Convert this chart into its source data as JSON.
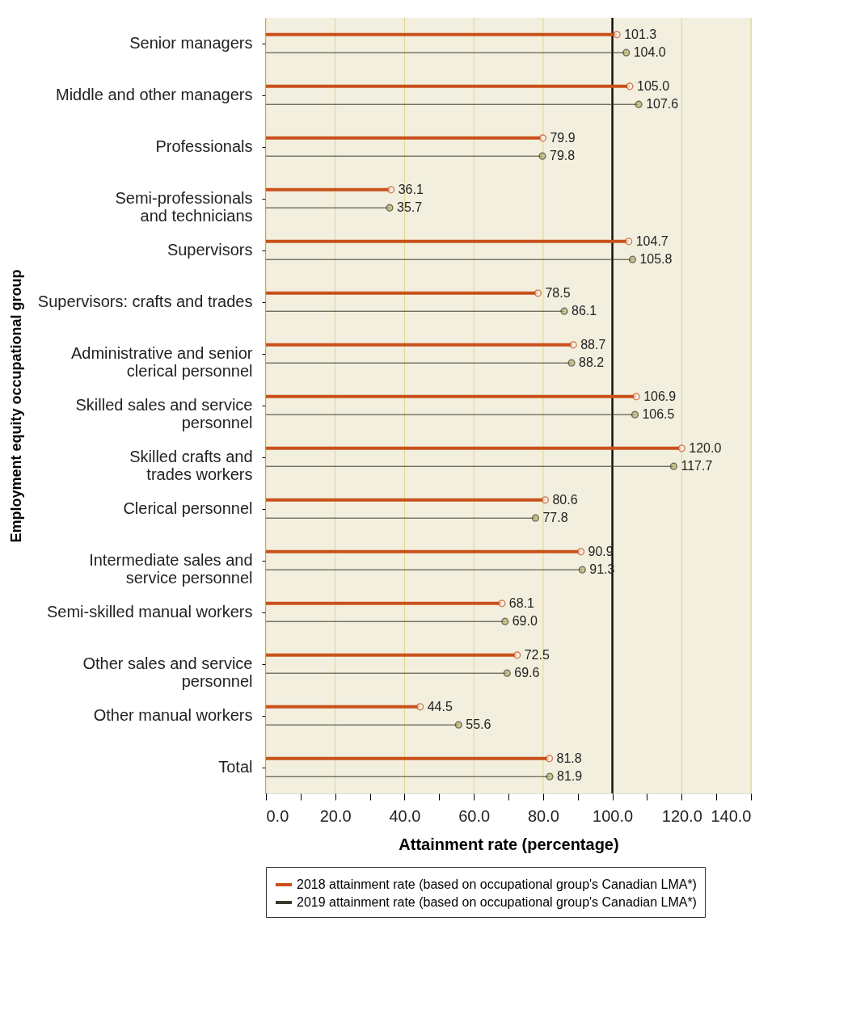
{
  "chart_data": {
    "type": "lollipop",
    "orientation": "horizontal",
    "xlabel": "Attainment rate (percentage)",
    "ylabel": "Employment equity occupational group",
    "categories": [
      "Senior managers",
      "Middle and other managers",
      "Professionals",
      "Semi-professionals\nand technicians",
      "Supervisors",
      "Supervisors: crafts and trades",
      "Administrative and senior\nclerical personnel",
      "Skilled sales and service\npersonnel",
      "Skilled crafts and\ntrades workers",
      "Clerical personnel",
      "Intermediate sales and\nservice personnel",
      "Semi-skilled manual workers",
      "Other sales and service\npersonnel",
      "Other manual workers",
      "Total"
    ],
    "series": [
      {
        "name": "2018 attainment rate (based on occupational group's Canadian LMA*)",
        "color": "#c9511a",
        "values": [
          101.3,
          105.0,
          79.9,
          36.1,
          104.7,
          78.5,
          88.7,
          106.9,
          120.0,
          80.6,
          90.9,
          68.1,
          72.5,
          44.5,
          81.8
        ],
        "value_labels": [
          "101.3",
          "105.0",
          "79.9",
          "36.1",
          "104.7",
          "78.5",
          "88.7",
          "106.9",
          "120.0",
          "80.6",
          "90.9",
          "68.1",
          "72.5",
          "44.5",
          "81.8"
        ]
      },
      {
        "name": "2019 attainment rate (based on occupational group's Canadian LMA*)",
        "color": "#3a3a2a",
        "values": [
          104.0,
          107.6,
          79.8,
          35.7,
          105.8,
          86.1,
          88.2,
          106.5,
          117.7,
          77.8,
          91.3,
          69.0,
          69.6,
          55.6,
          81.9
        ],
        "value_labels": [
          "104.0",
          "107.6",
          "79.8",
          "35.7",
          "105.8",
          "86.1",
          "88.2",
          "106.5",
          "117.7",
          "77.8",
          "91.3",
          "69.0",
          "69.6",
          "55.6",
          "81.9"
        ]
      }
    ],
    "xlim": [
      0,
      140
    ],
    "xticks": [
      {
        "value": 0,
        "label": "0.0"
      },
      {
        "value": 10,
        "label": null
      },
      {
        "value": 20,
        "label": "20.0"
      },
      {
        "value": 30,
        "label": null
      },
      {
        "value": 40,
        "label": "40.0"
      },
      {
        "value": 50,
        "label": null
      },
      {
        "value": 60,
        "label": "60.0"
      },
      {
        "value": 70,
        "label": null
      },
      {
        "value": 80,
        "label": "80.0"
      },
      {
        "value": 90,
        "label": null
      },
      {
        "value": 100,
        "label": "100.0"
      },
      {
        "value": 110,
        "label": null
      },
      {
        "value": 120,
        "label": "120.0"
      },
      {
        "value": 130,
        "label": null
      },
      {
        "value": 140,
        "label": "140.0"
      }
    ],
    "ref_lines": [
      {
        "axis": "x",
        "value": 100,
        "color": "#111111"
      }
    ],
    "grid": "x",
    "legend": "bottom",
    "marker": "circle"
  }
}
